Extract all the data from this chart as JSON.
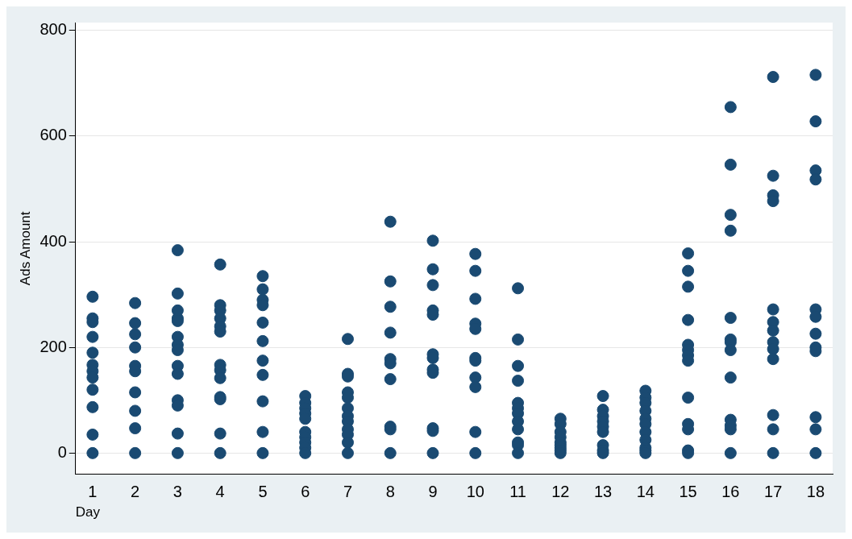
{
  "chart_data": {
    "type": "scatter",
    "xlabel": "Day",
    "ylabel": "Ads Amount",
    "xlim": [
      0.6,
      18.4
    ],
    "xticks": [
      1,
      2,
      3,
      4,
      5,
      6,
      7,
      8,
      9,
      10,
      11,
      12,
      13,
      14,
      15,
      16,
      17,
      18
    ],
    "ylim": [
      -40,
      815
    ],
    "yticks": [
      0,
      200,
      400,
      600,
      800
    ],
    "grid": "y",
    "marker": "circle",
    "series": [
      {
        "color": "#1a4a72",
        "x": [
          1,
          1,
          1,
          1,
          1,
          1,
          1,
          1,
          1,
          1,
          1,
          1,
          2,
          2,
          2,
          2,
          2,
          2,
          2,
          2,
          2,
          2,
          3,
          3,
          3,
          3,
          3,
          3,
          3,
          3,
          3,
          3,
          3,
          3,
          3,
          3,
          4,
          4,
          4,
          4,
          4,
          4,
          4,
          4,
          4,
          4,
          4,
          4,
          4,
          5,
          5,
          5,
          5,
          5,
          5,
          5,
          5,
          5,
          5,
          5,
          6,
          6,
          6,
          6,
          6,
          6,
          6,
          6,
          6,
          6,
          7,
          7,
          7,
          7,
          7,
          7,
          7,
          7,
          7,
          7,
          7,
          7,
          8,
          8,
          8,
          8,
          8,
          8,
          8,
          8,
          8,
          8,
          9,
          9,
          9,
          9,
          9,
          9,
          9,
          9,
          9,
          9,
          9,
          9,
          10,
          10,
          10,
          10,
          10,
          10,
          10,
          10,
          10,
          10,
          10,
          11,
          11,
          11,
          11,
          11,
          11,
          11,
          11,
          11,
          11,
          11,
          11,
          12,
          12,
          12,
          12,
          12,
          12,
          12,
          12,
          12,
          13,
          13,
          13,
          13,
          13,
          13,
          13,
          13,
          13,
          14,
          14,
          14,
          14,
          14,
          14,
          14,
          14,
          14,
          14,
          14,
          15,
          15,
          15,
          15,
          15,
          15,
          15,
          15,
          15,
          15,
          15,
          15,
          15,
          16,
          16,
          16,
          16,
          16,
          16,
          16,
          16,
          16,
          16,
          16,
          16,
          16,
          17,
          17,
          17,
          17,
          17,
          17,
          17,
          17,
          17,
          17,
          17,
          17,
          17,
          18,
          18,
          18,
          18,
          18,
          18,
          18,
          18,
          18,
          18,
          18,
          18
        ],
        "values": [
          296,
          255,
          248,
          220,
          190,
          167,
          155,
          143,
          120,
          87,
          35,
          0,
          284,
          246,
          225,
          200,
          165,
          155,
          115,
          80,
          47,
          0,
          384,
          302,
          270,
          255,
          250,
          220,
          205,
          195,
          165,
          150,
          100,
          90,
          37,
          0,
          357,
          280,
          270,
          255,
          240,
          230,
          167,
          157,
          142,
          106,
          102,
          37,
          0,
          335,
          310,
          290,
          280,
          247,
          212,
          175,
          148,
          98,
          40,
          0,
          108,
          95,
          85,
          75,
          65,
          40,
          30,
          20,
          10,
          0,
          216,
          150,
          145,
          115,
          105,
          85,
          70,
          60,
          45,
          35,
          20,
          0,
          438,
          325,
          277,
          228,
          178,
          170,
          140,
          50,
          45,
          0,
          402,
          348,
          318,
          270,
          262,
          187,
          180,
          158,
          152,
          47,
          42,
          0,
          377,
          345,
          292,
          245,
          235,
          180,
          175,
          143,
          125,
          40,
          0,
          312,
          215,
          165,
          137,
          95,
          85,
          75,
          60,
          45,
          20,
          15,
          0,
          65,
          55,
          40,
          30,
          20,
          15,
          10,
          5,
          0,
          108,
          82,
          70,
          60,
          50,
          40,
          15,
          5,
          0,
          118,
          105,
          95,
          80,
          65,
          55,
          40,
          25,
          10,
          5,
          0,
          378,
          345,
          315,
          252,
          205,
          195,
          185,
          175,
          105,
          55,
          45,
          5,
          0,
          655,
          546,
          451,
          421,
          256,
          215,
          210,
          195,
          143,
          63,
          52,
          45,
          0,
          712,
          525,
          488,
          477,
          272,
          248,
          232,
          210,
          197,
          178,
          72,
          45,
          0,
          716,
          628,
          535,
          518,
          272,
          258,
          226,
          200,
          193,
          68,
          45,
          0
        ]
      }
    ]
  }
}
